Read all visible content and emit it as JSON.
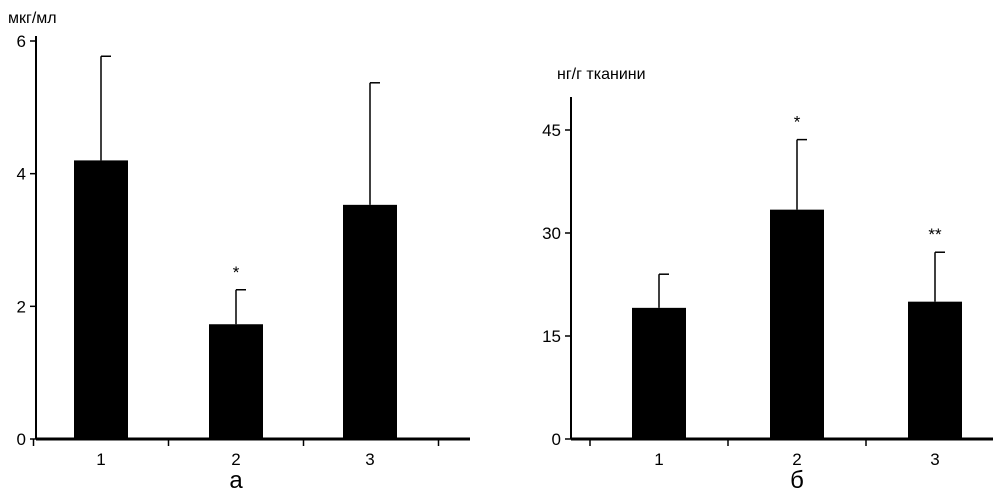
{
  "chart_data": [
    {
      "type": "bar",
      "panel_label": "а",
      "ylabel": "мкг/мл",
      "ylim": [
        0,
        6
      ],
      "yticks": [
        0,
        2,
        4,
        6
      ],
      "categories": [
        "1",
        "2",
        "3"
      ],
      "values": [
        4.2,
        1.73,
        3.53
      ],
      "error_upper": [
        5.77,
        2.25,
        5.37
      ],
      "annotations": [
        "",
        "*",
        ""
      ],
      "bar_color": "#000000",
      "grid": false
    },
    {
      "type": "bar",
      "panel_label": "б",
      "ylabel": "нг/г тканини",
      "ylim": [
        0,
        45
      ],
      "yticks": [
        0,
        15,
        30,
        45
      ],
      "categories": [
        "1",
        "2",
        "3"
      ],
      "values": [
        19.1,
        33.4,
        20.0
      ],
      "error_upper": [
        24.0,
        43.6,
        27.2
      ],
      "annotations": [
        "",
        "*",
        "**"
      ],
      "bar_color": "#000000",
      "grid": false
    }
  ]
}
